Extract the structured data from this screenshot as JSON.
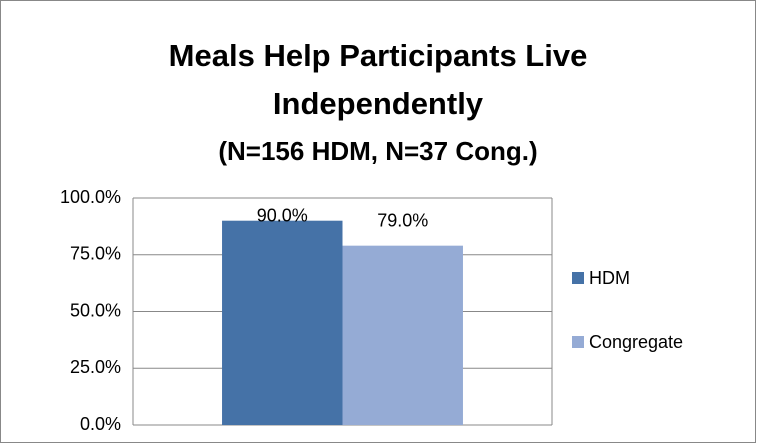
{
  "chart_data": {
    "type": "bar",
    "title": "Meals Help Participants Live Independently",
    "subtitle": "(N=156 HDM, N=37 Cong.)",
    "categories": [
      null
    ],
    "series": [
      {
        "name": "HDM",
        "color": "#4572a7",
        "values": [
          90
        ],
        "value_labels": [
          "90.0%"
        ]
      },
      {
        "name": "Congregate",
        "color": "#95abd5",
        "values": [
          79
        ],
        "value_labels": [
          "79.0%"
        ]
      }
    ],
    "ylim": [
      0,
      100
    ],
    "yticks": [
      {
        "value": 0,
        "label": "0.0%"
      },
      {
        "value": 25,
        "label": "25.0%"
      },
      {
        "value": 50,
        "label": "50.0%"
      },
      {
        "value": 75,
        "label": "75.0%"
      },
      {
        "value": 100,
        "label": "100.0%"
      }
    ],
    "grid": true,
    "legend": "right"
  }
}
